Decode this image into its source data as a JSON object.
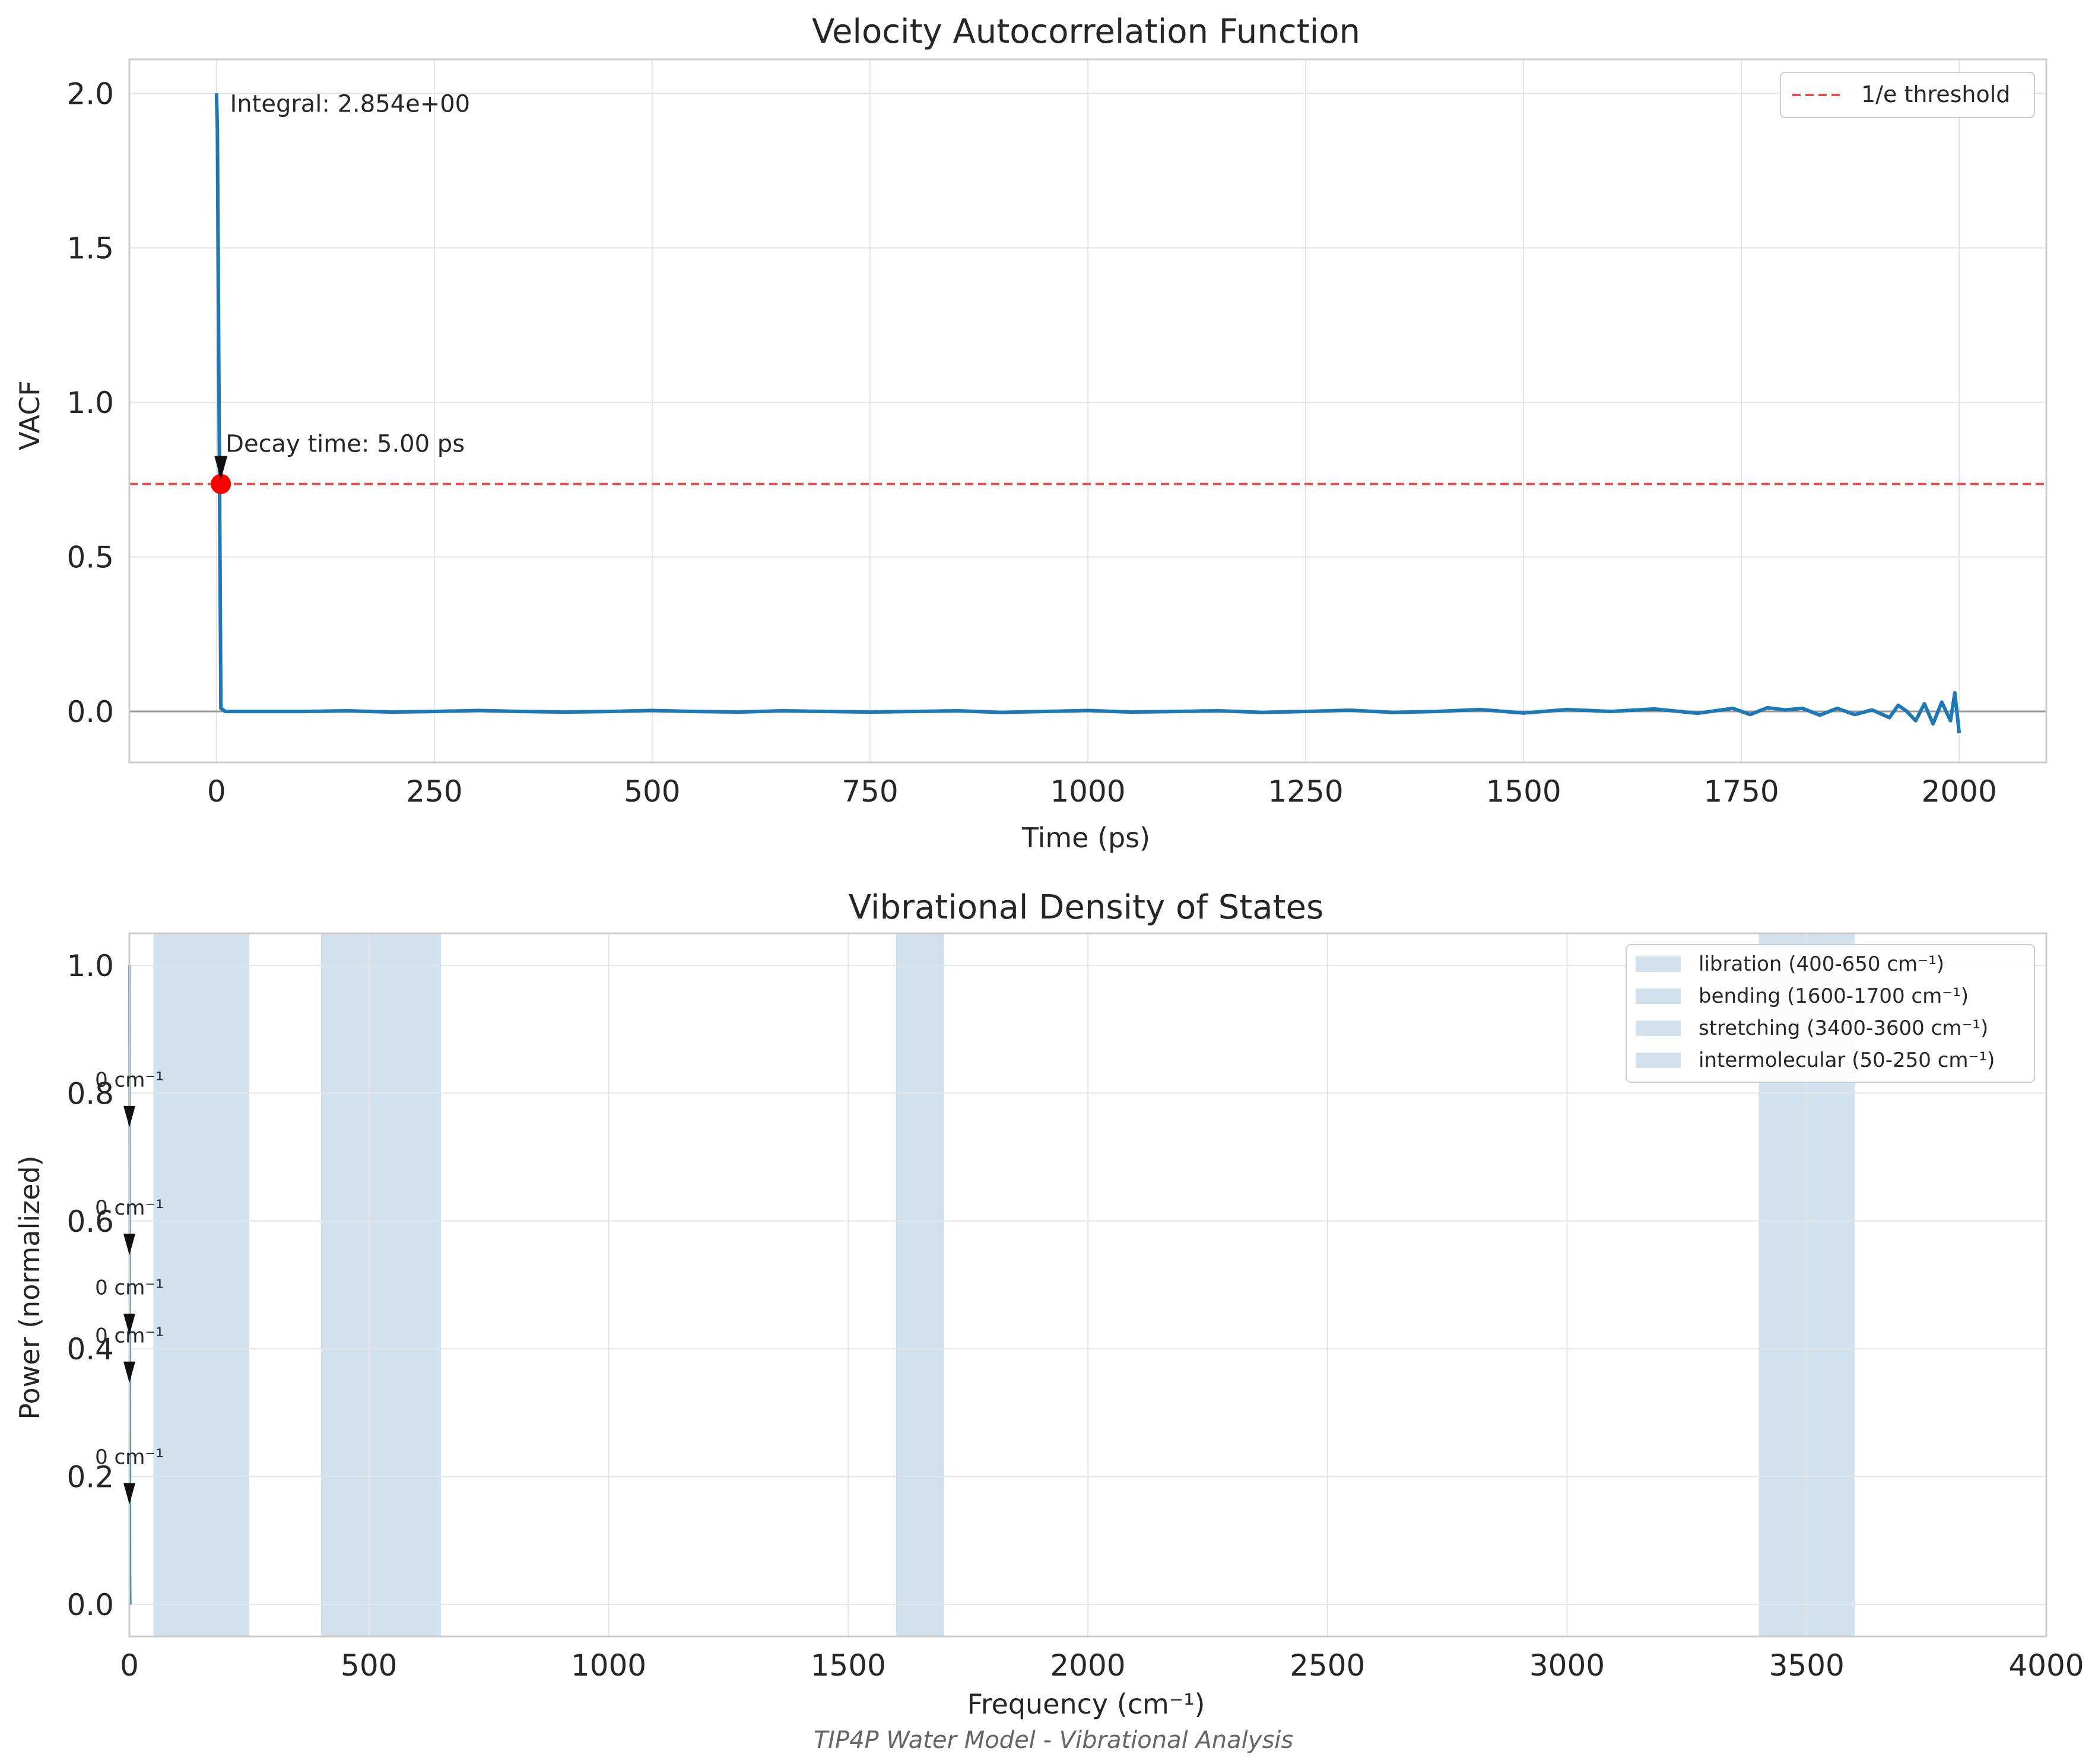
{
  "figure": {
    "caption": "TIP4P Water Model - Vibrational Analysis"
  },
  "chart_data": [
    {
      "type": "line",
      "title": "Velocity Autocorrelation Function",
      "xlabel": "Time (ps)",
      "ylabel": "VACF",
      "xlim": [
        -100,
        2100
      ],
      "ylim": [
        -0.165,
        2.11
      ],
      "xticks": [
        0,
        250,
        500,
        750,
        1000,
        1250,
        1500,
        1750,
        2000
      ],
      "yticks": [
        0.0,
        0.5,
        1.0,
        1.5,
        2.0
      ],
      "grid": true,
      "legend": {
        "position": "top-right",
        "entries": [
          "1/e threshold"
        ]
      },
      "series": [
        {
          "color": "#1f77b4",
          "x": [
            0,
            1,
            2,
            5,
            10,
            50,
            100,
            150,
            200,
            250,
            300,
            350,
            400,
            450,
            500,
            550,
            600,
            650,
            700,
            750,
            800,
            850,
            900,
            950,
            1000,
            1050,
            1100,
            1150,
            1200,
            1250,
            1300,
            1350,
            1400,
            1450,
            1500,
            1550,
            1600,
            1650,
            1700,
            1740,
            1760,
            1780,
            1800,
            1820,
            1840,
            1860,
            1880,
            1900,
            1920,
            1930,
            1940,
            1950,
            1960,
            1970,
            1980,
            1990,
            1995,
            2000
          ],
          "y": [
            2.0,
            1.88,
            1.4,
            0.01,
            0.0,
            0.0,
            0.0,
            0.002,
            -0.002,
            0.0,
            0.003,
            0.0,
            -0.002,
            0.0,
            0.003,
            0.0,
            -0.002,
            0.002,
            0.0,
            -0.002,
            0.0,
            0.002,
            -0.003,
            0.0,
            0.003,
            -0.002,
            0.0,
            0.002,
            -0.003,
            0.0,
            0.004,
            -0.003,
            0.0,
            0.006,
            -0.005,
            0.006,
            0.0,
            0.008,
            -0.006,
            0.01,
            -0.01,
            0.012,
            0.005,
            0.01,
            -0.012,
            0.01,
            -0.01,
            0.005,
            -0.02,
            0.02,
            0.0,
            -0.03,
            0.025,
            -0.04,
            0.03,
            -0.03,
            0.06,
            -0.07
          ]
        }
      ],
      "threshold": {
        "label": "1/e threshold",
        "y": 0.736,
        "color": "#e05252"
      },
      "marker": {
        "x": 5,
        "y": 0.736,
        "color": "#ff0000"
      },
      "annotations": [
        {
          "text": "Integral: 2.854e+00",
          "x": 10,
          "y": 1.94
        },
        {
          "text": "Decay time: 5.00 ps",
          "x": 5,
          "y": 0.84,
          "arrow_to": [
            5,
            0.75
          ]
        }
      ]
    },
    {
      "type": "area",
      "title": "Vibrational Density of States",
      "xlabel": "Frequency (cm⁻¹)",
      "ylabel": "Power (normalized)",
      "xlim": [
        0,
        4000
      ],
      "ylim": [
        -0.05,
        1.05
      ],
      "xticks": [
        0,
        500,
        1000,
        1500,
        2000,
        2500,
        3000,
        3500,
        4000
      ],
      "yticks": [
        0.0,
        0.2,
        0.4,
        0.6,
        0.8,
        1.0
      ],
      "grid": true,
      "legend": {
        "position": "top-right"
      },
      "bands": [
        {
          "label": "libration (400-650 cm⁻¹)",
          "range": [
            400,
            650
          ],
          "color": "#b3cde3"
        },
        {
          "label": "bending (1600-1700 cm⁻¹)",
          "range": [
            1600,
            1700
          ],
          "color": "#b3cde3"
        },
        {
          "label": "stretching (3400-3600 cm⁻¹)",
          "range": [
            3400,
            3600
          ],
          "color": "#b3cde3"
        },
        {
          "label": "intermolecular (50-250 cm⁻¹)",
          "range": [
            50,
            250
          ],
          "color": "#b3cde3"
        }
      ],
      "band_extra": {
        "range": [
          3400,
          3600
        ]
      },
      "series": [
        {
          "color": "#1f77b4",
          "x": [
            0,
            0.5,
            1,
            1.5,
            2
          ],
          "y": [
            1.0,
            0.6,
            0.3,
            0.05,
            0.0
          ]
        }
      ],
      "annotations": [
        {
          "text": "0 cm⁻¹",
          "x": 0,
          "y": 0.81,
          "arrow_to": [
            0,
            0.78
          ]
        },
        {
          "text": "0 cm⁻¹",
          "x": 0,
          "y": 0.61,
          "arrow_to": [
            0,
            0.58
          ]
        },
        {
          "text": "0 cm⁻¹",
          "x": 0,
          "y": 0.485,
          "arrow_to": [
            0,
            0.455
          ]
        },
        {
          "text": "0 cm⁻¹",
          "x": 0,
          "y": 0.41,
          "arrow_to": [
            0,
            0.38
          ]
        },
        {
          "text": "0 cm⁻¹",
          "x": 0,
          "y": 0.22,
          "arrow_to": [
            0,
            0.19
          ]
        }
      ]
    }
  ]
}
